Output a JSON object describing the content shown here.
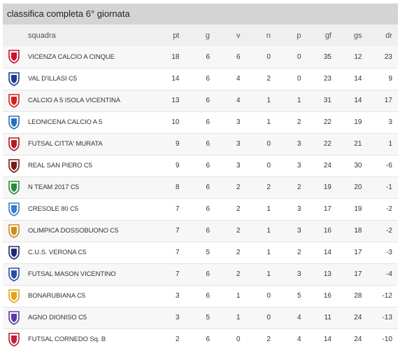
{
  "title": "classifica completa 6° giornata",
  "headers": {
    "team": "squadra",
    "pt": "pt",
    "g": "g",
    "v": "v",
    "n": "n",
    "p": "p",
    "gf": "gf",
    "gs": "gs",
    "dr": "dr"
  },
  "rows": [
    {
      "team": "VICENZA CALCIO A CINQUE",
      "pt": "18",
      "g": "6",
      "v": "6",
      "n": "0",
      "p": "0",
      "gf": "35",
      "gs": "12",
      "dr": "23",
      "logo_icon": "vicenza-crest-icon",
      "logo_color": "#c8102e"
    },
    {
      "team": "VAL D'ILLASI C5",
      "pt": "14",
      "g": "6",
      "v": "4",
      "n": "2",
      "p": "0",
      "gf": "23",
      "gs": "14",
      "dr": "9",
      "logo_icon": "val-dillasi-crest-icon",
      "logo_color": "#1f3b8f"
    },
    {
      "team": "CALCIO A 5 ISOLA VICENTINA",
      "pt": "13",
      "g": "6",
      "v": "4",
      "n": "1",
      "p": "1",
      "gf": "31",
      "gs": "14",
      "dr": "17",
      "logo_icon": "isola-vicentina-crest-icon",
      "logo_color": "#d81e1e"
    },
    {
      "team": "LEONICENA CALCIO A 5",
      "pt": "10",
      "g": "6",
      "v": "3",
      "n": "1",
      "p": "2",
      "gf": "22",
      "gs": "19",
      "dr": "3",
      "logo_icon": "leonicena-crest-icon",
      "logo_color": "#2a6fb8"
    },
    {
      "team": "FUTSAL CITTA' MURATA",
      "pt": "9",
      "g": "6",
      "v": "3",
      "n": "0",
      "p": "3",
      "gf": "22",
      "gs": "21",
      "dr": "1",
      "logo_icon": "citta-murata-crest-icon",
      "logo_color": "#b01c24"
    },
    {
      "team": "REAL SAN PIERO C5",
      "pt": "9",
      "g": "6",
      "v": "3",
      "n": "0",
      "p": "3",
      "gf": "24",
      "gs": "30",
      "dr": "-6",
      "logo_icon": "real-san-piero-crest-icon",
      "logo_color": "#7a1a1a"
    },
    {
      "team": "N TEAM 2017 C5",
      "pt": "8",
      "g": "6",
      "v": "2",
      "n": "2",
      "p": "2",
      "gf": "19",
      "gs": "20",
      "dr": "-1",
      "logo_icon": "n-team-crest-icon",
      "logo_color": "#2a8a3a"
    },
    {
      "team": "CRESOLE 80 C5",
      "pt": "7",
      "g": "6",
      "v": "2",
      "n": "1",
      "p": "3",
      "gf": "17",
      "gs": "19",
      "dr": "-2",
      "logo_icon": "cresole-crest-icon",
      "logo_color": "#3a7ec8"
    },
    {
      "team": "OLIMPICA DOSSOBUONO C5",
      "pt": "7",
      "g": "6",
      "v": "2",
      "n": "1",
      "p": "3",
      "gf": "16",
      "gs": "18",
      "dr": "-2",
      "logo_icon": "olimpica-dossobuono-crest-icon",
      "logo_color": "#d08a1a"
    },
    {
      "team": "C.U.S. VERONA C5",
      "pt": "7",
      "g": "5",
      "v": "2",
      "n": "1",
      "p": "2",
      "gf": "14",
      "gs": "17",
      "dr": "-3",
      "logo_icon": "cus-verona-crest-icon",
      "logo_color": "#1c2a6b"
    },
    {
      "team": "FUTSAL MASON VICENTINO",
      "pt": "7",
      "g": "6",
      "v": "2",
      "n": "1",
      "p": "3",
      "gf": "13",
      "gs": "17",
      "dr": "-4",
      "logo_icon": "mason-vicentino-crest-icon",
      "logo_color": "#2b4fa6"
    },
    {
      "team": "BONARUBIANA C5",
      "pt": "3",
      "g": "6",
      "v": "1",
      "n": "0",
      "p": "5",
      "gf": "16",
      "gs": "28",
      "dr": "-12",
      "logo_icon": "bonarubiana-crest-icon",
      "logo_color": "#e2a51c"
    },
    {
      "team": "AGNO DIONISO C5",
      "pt": "3",
      "g": "5",
      "v": "1",
      "n": "0",
      "p": "4",
      "gf": "11",
      "gs": "24",
      "dr": "-13",
      "logo_icon": "agno-dioniso-crest-icon",
      "logo_color": "#5a3aa8"
    },
    {
      "team": "FUTSAL CORNEDO Sq. B",
      "pt": "2",
      "g": "6",
      "v": "0",
      "n": "2",
      "p": "4",
      "gf": "14",
      "gs": "24",
      "dr": "-10",
      "logo_icon": "cornedo-crest-icon",
      "logo_color": "#c0213a"
    }
  ]
}
